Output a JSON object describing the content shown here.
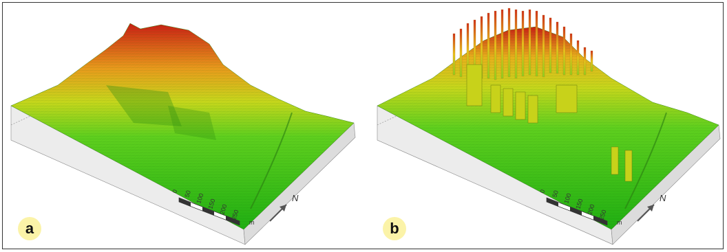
{
  "panels": [
    {
      "label": "a",
      "scale_ticks": [
        "0",
        "50",
        "100",
        "150",
        "200",
        "250"
      ],
      "scale_unit": "m",
      "north": "N"
    },
    {
      "label": "b",
      "scale_ticks": [
        "0",
        "50",
        "100",
        "150",
        "200",
        "250"
      ],
      "scale_unit": "m",
      "north": "N"
    }
  ],
  "colors": {
    "low": "#2fbf1a",
    "mid": "#c8d21a",
    "high": "#d9301a",
    "base": "#e9e9e9",
    "badge": "#fbf3a8"
  }
}
